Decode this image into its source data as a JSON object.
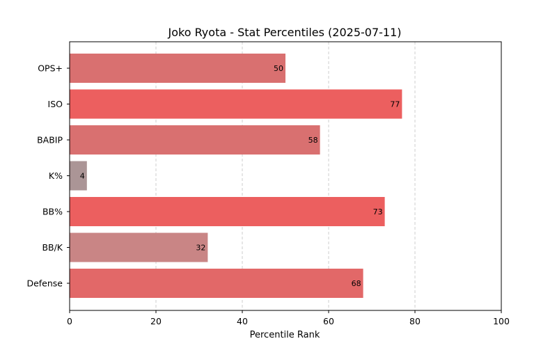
{
  "chart_data": {
    "type": "bar",
    "orientation": "horizontal",
    "title": "Joko Ryota - Stat Percentiles (2025-07-11)",
    "xlabel": "Percentile Rank",
    "ylabel": "",
    "xlim": [
      0,
      100
    ],
    "x_ticks": [
      0,
      20,
      40,
      60,
      80,
      100
    ],
    "grid": "x-dashed",
    "categories": [
      "OPS+",
      "ISO",
      "BABIP",
      "K%",
      "BB%",
      "BB/K",
      "Defense"
    ],
    "values": [
      50,
      77,
      58,
      4,
      73,
      32,
      68
    ],
    "bar_colors": [
      "#d97070",
      "#ec5f5f",
      "#d97070",
      "#ab9596",
      "#ec5f5f",
      "#c98585",
      "#e26868"
    ]
  }
}
